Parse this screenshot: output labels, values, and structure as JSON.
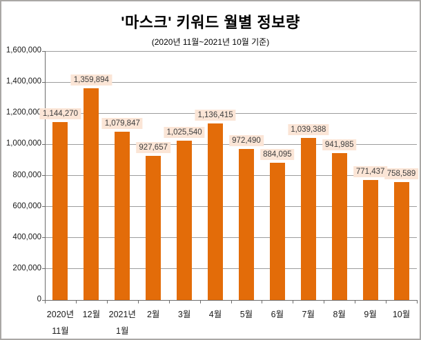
{
  "chart_data": {
    "type": "bar",
    "title": "'마스크' 키워드 월별 정보량",
    "subtitle": "(2020년 11월~2021년 10월 기준)",
    "categories": [
      "2020년\n11월",
      "12월",
      "2021년\n1월",
      "2월",
      "3월",
      "4월",
      "5월",
      "6월",
      "7월",
      "8월",
      "9월",
      "10월"
    ],
    "values": [
      1144270,
      1359894,
      1079847,
      927657,
      1025540,
      1136415,
      972490,
      884095,
      1039388,
      941985,
      771437,
      758589
    ],
    "value_labels": [
      "1,144,270",
      "1,359,894",
      "1,079,847",
      "927,657",
      "1,025,540",
      "1,136,415",
      "972,490",
      "884,095",
      "1,039,388",
      "941,985",
      "771,437",
      "758,589"
    ],
    "y_ticks": [
      0,
      200000,
      400000,
      600000,
      800000,
      1000000,
      1200000,
      1400000,
      1600000
    ],
    "y_tick_labels": [
      "0",
      "200,000",
      "400,000",
      "600,000",
      "800,000",
      "1,000,000",
      "1,200,000",
      "1,400,000",
      "1,600,000"
    ],
    "ylim": [
      0,
      1600000
    ],
    "grid": true,
    "legend": "none",
    "bar_color": "#e36c09",
    "label_bg": "#fbe5d6"
  }
}
